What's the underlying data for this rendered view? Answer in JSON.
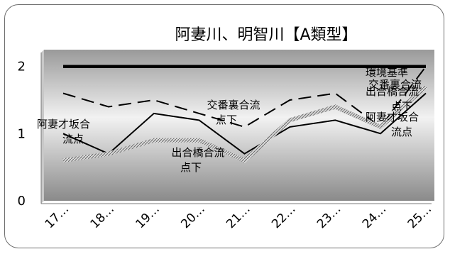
{
  "chart_data": {
    "type": "line",
    "title": "阿妻川、明智川【A類型】",
    "categories": [
      "17…",
      "18…",
      "19…",
      "20…",
      "21…",
      "22…",
      "23…",
      "24…",
      "25…"
    ],
    "ylim": [
      0,
      2.25
    ],
    "yticks": [
      "0",
      "1",
      "2"
    ],
    "grid": false,
    "series": [
      {
        "name": "環境基準",
        "style": "thick-solid",
        "color": "#000000",
        "values": [
          2.0,
          2.0,
          2.0,
          2.0,
          2.0,
          2.0,
          2.0,
          2.0,
          2.0
        ]
      },
      {
        "name": "交番裏合流点下",
        "style": "dashed",
        "color": "#000000",
        "values": [
          1.6,
          1.4,
          1.5,
          1.3,
          1.1,
          1.5,
          1.6,
          1.1,
          2.0
        ]
      },
      {
        "name": "阿妻才坂合流点",
        "style": "solid",
        "color": "#000000",
        "values": [
          1.0,
          0.7,
          1.3,
          1.2,
          0.7,
          1.1,
          1.2,
          1.0,
          1.6
        ]
      },
      {
        "name": "出合橋合流点下",
        "style": "hatched",
        "color": "#b5b5b5",
        "values": [
          0.6,
          0.7,
          0.9,
          0.9,
          0.6,
          1.2,
          1.4,
          1.1,
          1.7
        ]
      }
    ],
    "annotations": [
      {
        "text": [
          "阿妻才坂合",
          "流点"
        ]
      },
      {
        "text": [
          "交番裏合流",
          "点下"
        ]
      },
      {
        "text": [
          "出合橋合流",
          "点下"
        ]
      },
      {
        "text": [
          "環境基準"
        ]
      },
      {
        "text": [
          "交番裏合流"
        ]
      },
      {
        "text": [
          "出合橋合流",
          "点下"
        ]
      },
      {
        "text": [
          "阿妻才坂合",
          "流点"
        ]
      }
    ]
  }
}
